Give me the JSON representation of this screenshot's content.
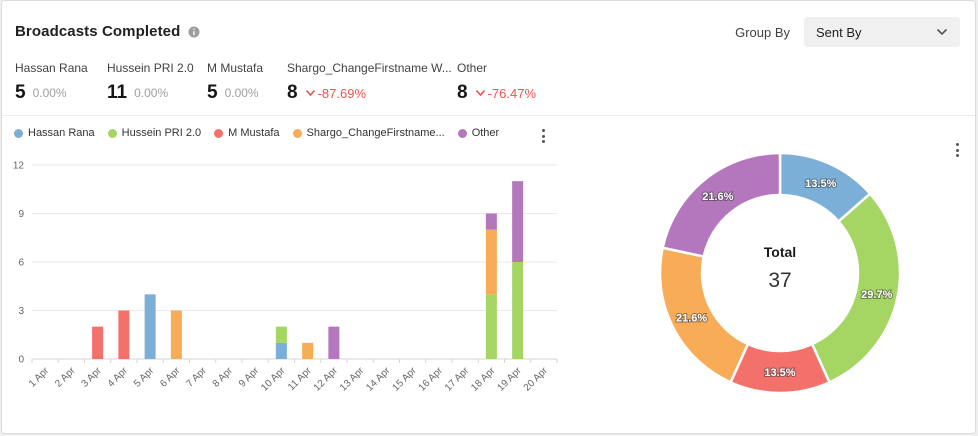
{
  "header": {
    "title": "Broadcasts Completed",
    "group_by_label": "Group By",
    "group_by_value": "Sent By"
  },
  "stats": [
    {
      "label": "Hassan Rana",
      "value": "5",
      "change": "0.00%",
      "direction": "none"
    },
    {
      "label": "Hussein PRI 2.0",
      "value": "11",
      "change": "0.00%",
      "direction": "none"
    },
    {
      "label": "M Mustafa",
      "value": "5",
      "change": "0.00%",
      "direction": "none"
    },
    {
      "label": "Shargo_ChangeFirstname W...",
      "value": "8",
      "change": "-87.69%",
      "direction": "down"
    },
    {
      "label": "Other",
      "value": "8",
      "change": "-76.47%",
      "direction": "down"
    }
  ],
  "legend": {
    "items": [
      {
        "label": "Hassan Rana",
        "color": "#7CAFD8"
      },
      {
        "label": "Hussein PRI 2.0",
        "color": "#A5D663"
      },
      {
        "label": "M Mustafa",
        "color": "#F4716B"
      },
      {
        "label": "Shargo_ChangeFirstname...",
        "color": "#F8AC58"
      },
      {
        "label": "Other",
        "color": "#B477BE"
      }
    ]
  },
  "colors": {
    "negative": "#EF5350",
    "grid": "#E9E9E9",
    "axis": "#D6D6D6",
    "tick_text": "#666666"
  },
  "chart_data": [
    {
      "type": "bar",
      "stacked": true,
      "title": "",
      "xlabel": "",
      "ylabel": "",
      "ylim": [
        0,
        12
      ],
      "yticks": [
        0,
        3,
        6,
        9,
        12
      ],
      "grid": true,
      "legend_position": "top",
      "categories": [
        "1 Apr",
        "2 Apr",
        "3 Apr",
        "4 Apr",
        "5 Apr",
        "6 Apr",
        "7 Apr",
        "8 Apr",
        "9 Apr",
        "10 Apr",
        "11 Apr",
        "12 Apr",
        "13 Apr",
        "14 Apr",
        "15 Apr",
        "16 Apr",
        "17 Apr",
        "18 Apr",
        "19 Apr",
        "20 Apr"
      ],
      "series": [
        {
          "name": "Hassan Rana",
          "color": "#7CAFD8",
          "values": [
            0,
            0,
            0,
            0,
            4,
            0,
            0,
            0,
            0,
            1,
            0,
            0,
            0,
            0,
            0,
            0,
            0,
            0,
            0,
            0
          ]
        },
        {
          "name": "Hussein PRI 2.0",
          "color": "#A5D663",
          "values": [
            0,
            0,
            0,
            0,
            0,
            0,
            0,
            0,
            0,
            1,
            0,
            0,
            0,
            0,
            0,
            0,
            0,
            4,
            6,
            0
          ]
        },
        {
          "name": "M Mustafa",
          "color": "#F4716B",
          "values": [
            0,
            0,
            2,
            3,
            0,
            0,
            0,
            0,
            0,
            0,
            0,
            0,
            0,
            0,
            0,
            0,
            0,
            0,
            0,
            0
          ]
        },
        {
          "name": "Shargo_ChangeFirstname...",
          "color": "#F8AC58",
          "values": [
            0,
            0,
            0,
            0,
            0,
            3,
            0,
            0,
            0,
            0,
            1,
            0,
            0,
            0,
            0,
            0,
            0,
            4,
            0,
            0
          ]
        },
        {
          "name": "Other",
          "color": "#B477BE",
          "values": [
            0,
            0,
            0,
            0,
            0,
            0,
            0,
            0,
            0,
            0,
            0,
            2,
            0,
            0,
            0,
            0,
            0,
            1,
            5,
            0
          ]
        }
      ]
    },
    {
      "type": "pie",
      "donut": true,
      "center_label": "Total",
      "center_value": "37",
      "slices": [
        {
          "name": "Hassan Rana",
          "value": 5,
          "pct_label": "13.5%",
          "color": "#7CAFD8"
        },
        {
          "name": "Hussein PRI 2.0",
          "value": 11,
          "pct_label": "29.7%",
          "color": "#A5D663"
        },
        {
          "name": "M Mustafa",
          "value": 5,
          "pct_label": "13.5%",
          "color": "#F4716B"
        },
        {
          "name": "Shargo_ChangeFirstname...",
          "value": 8,
          "pct_label": "21.6%",
          "color": "#F8AC58"
        },
        {
          "name": "Other",
          "value": 8,
          "pct_label": "21.6%",
          "color": "#B477BE"
        }
      ]
    }
  ]
}
